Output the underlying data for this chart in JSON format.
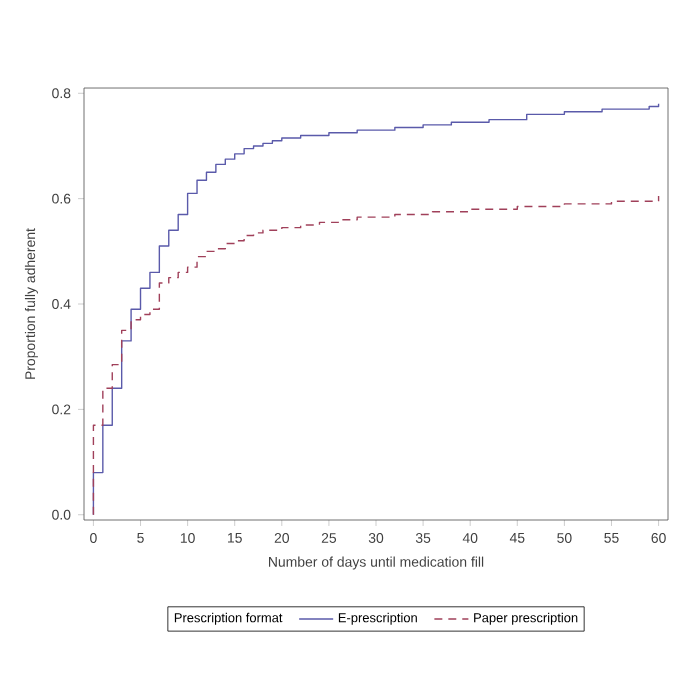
{
  "chart_data": {
    "type": "step",
    "xlabel": "Number of days until medication fill",
    "ylabel": "Proportion fully adherent",
    "legend_title": "Prescription format",
    "legend": "bottom",
    "xlim": [
      -1,
      61
    ],
    "ylim": [
      -0.01,
      0.81
    ],
    "xticks": [
      0,
      5,
      10,
      15,
      20,
      25,
      30,
      35,
      40,
      45,
      50,
      55,
      60
    ],
    "yticks": [
      {
        "value": 0,
        "label": "0.0"
      },
      {
        "value": 0.2,
        "label": "0.2"
      },
      {
        "value": 0.4,
        "label": "0.4"
      },
      {
        "value": 0.6,
        "label": "0.6"
      },
      {
        "value": 0.8,
        "label": "0.8"
      }
    ],
    "series": [
      {
        "name": "E-prescription",
        "color": "#5a5aaa",
        "line_style": "solid",
        "x": [
          0,
          0,
          1,
          2,
          3,
          4,
          5,
          6,
          7,
          8,
          9,
          10,
          11,
          12,
          13,
          14,
          15,
          16,
          17,
          18,
          19,
          20,
          22,
          25,
          28,
          32,
          35,
          38,
          42,
          46,
          50,
          54,
          59,
          60
        ],
        "values": [
          0,
          0.08,
          0.17,
          0.24,
          0.33,
          0.39,
          0.43,
          0.46,
          0.51,
          0.54,
          0.57,
          0.61,
          0.635,
          0.65,
          0.665,
          0.675,
          0.685,
          0.695,
          0.7,
          0.705,
          0.71,
          0.715,
          0.72,
          0.725,
          0.73,
          0.735,
          0.74,
          0.745,
          0.75,
          0.76,
          0.765,
          0.77,
          0.775,
          0.78
        ]
      },
      {
        "name": "Paper prescription",
        "color": "#a0405a",
        "line_style": "dashed",
        "x": [
          0,
          0,
          1,
          2,
          3,
          4,
          5,
          6,
          7,
          8,
          9,
          10,
          11,
          12,
          13,
          14,
          15,
          16,
          17,
          18,
          20,
          22,
          24,
          26,
          28,
          32,
          36,
          40,
          45,
          50,
          55,
          60
        ],
        "values": [
          0,
          0.17,
          0.24,
          0.285,
          0.35,
          0.37,
          0.38,
          0.39,
          0.44,
          0.45,
          0.46,
          0.47,
          0.49,
          0.5,
          0.505,
          0.515,
          0.52,
          0.53,
          0.535,
          0.54,
          0.545,
          0.55,
          0.555,
          0.56,
          0.565,
          0.57,
          0.575,
          0.58,
          0.585,
          0.59,
          0.595,
          0.605
        ]
      }
    ]
  }
}
